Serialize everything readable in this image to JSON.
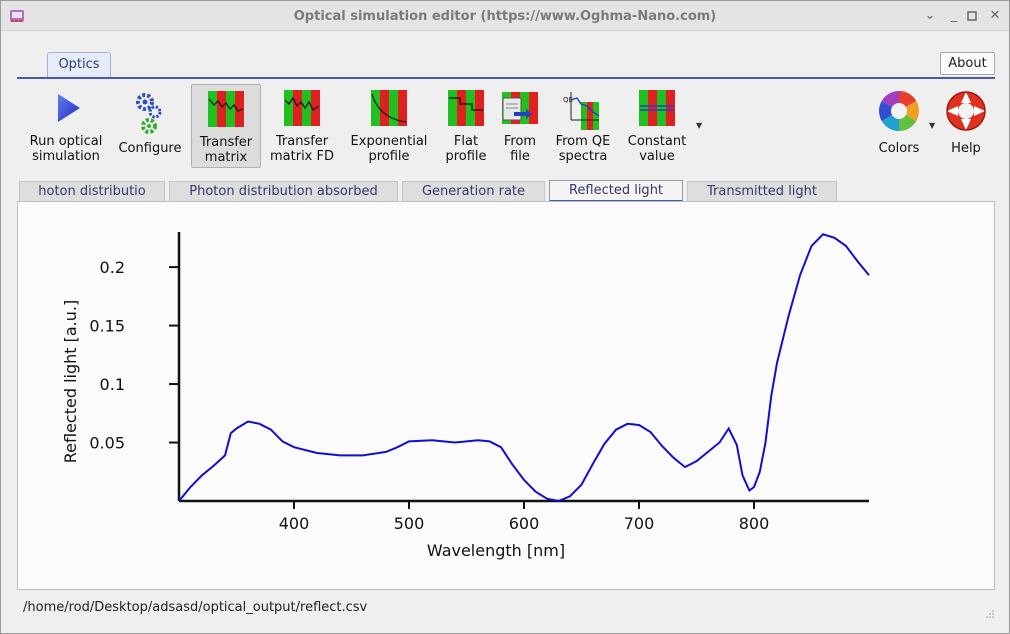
{
  "window": {
    "title": "Optical simulation editor (https://www.Oghma-Nano.com)"
  },
  "ribbon": {
    "tab_label": "Optics",
    "about_label": "About"
  },
  "toolbar": {
    "run_label": "Run optical\nsimulation",
    "configure_label": "Configure",
    "transfer_matrix_label": "Transfer\nmatrix",
    "transfer_matrix_fd_label": "Transfer\nmatrix FD",
    "exponential_label": "Exponential\nprofile",
    "flat_label": "Flat\nprofile",
    "from_file_label": "From\nfile",
    "from_qe_label": "From QE\nspectra",
    "constant_label": "Constant\nvalue",
    "colors_label": "Colors",
    "help_label": "Help"
  },
  "tabs": [
    {
      "label": "hoton distributio"
    },
    {
      "label": "Photon distribution absorbed"
    },
    {
      "label": "Generation rate"
    },
    {
      "label": "Reflected light"
    },
    {
      "label": "Transmitted light"
    }
  ],
  "chart_data": {
    "type": "line",
    "xlabel": "Wavelength [nm]",
    "ylabel": "Reflected light [a.u.]",
    "xlim": [
      300,
      900
    ],
    "ylim": [
      0,
      0.23
    ],
    "xticks": [
      400,
      500,
      600,
      700,
      800
    ],
    "yticks": [
      0.05,
      0.1,
      0.15,
      0.2
    ],
    "xtick_labels": [
      "400",
      "500",
      "600",
      "700",
      "800"
    ],
    "ytick_labels": [
      "0.05",
      "0.1",
      "0.15",
      "0.2"
    ],
    "grid": false,
    "line_color": "#1010d0",
    "series": [
      {
        "x": [
          300,
          310,
          320,
          330,
          340,
          345,
          350,
          360,
          370,
          380,
          390,
          400,
          420,
          440,
          460,
          480,
          490,
          500,
          520,
          540,
          560,
          570,
          580,
          590,
          600,
          610,
          620,
          630,
          640,
          650,
          660,
          670,
          680,
          690,
          700,
          710,
          720,
          730,
          740,
          750,
          760,
          770,
          778,
          785,
          790,
          796,
          800,
          805,
          810,
          815,
          820,
          830,
          840,
          850,
          860,
          870,
          880,
          890,
          900
        ],
        "y": [
          0.0,
          0.012,
          0.022,
          0.03,
          0.039,
          0.058,
          0.062,
          0.068,
          0.066,
          0.061,
          0.051,
          0.046,
          0.041,
          0.039,
          0.039,
          0.042,
          0.046,
          0.051,
          0.052,
          0.05,
          0.052,
          0.051,
          0.046,
          0.031,
          0.018,
          0.008,
          0.002,
          0.0,
          0.004,
          0.014,
          0.032,
          0.049,
          0.061,
          0.066,
          0.065,
          0.059,
          0.047,
          0.037,
          0.029,
          0.034,
          0.042,
          0.05,
          0.062,
          0.048,
          0.022,
          0.009,
          0.012,
          0.025,
          0.05,
          0.09,
          0.118,
          0.158,
          0.193,
          0.218,
          0.228,
          0.225,
          0.218,
          0.205,
          0.193
        ]
      }
    ]
  },
  "status": {
    "path": "/home/rod/Desktop/adsasd/optical_output/reflect.csv"
  }
}
